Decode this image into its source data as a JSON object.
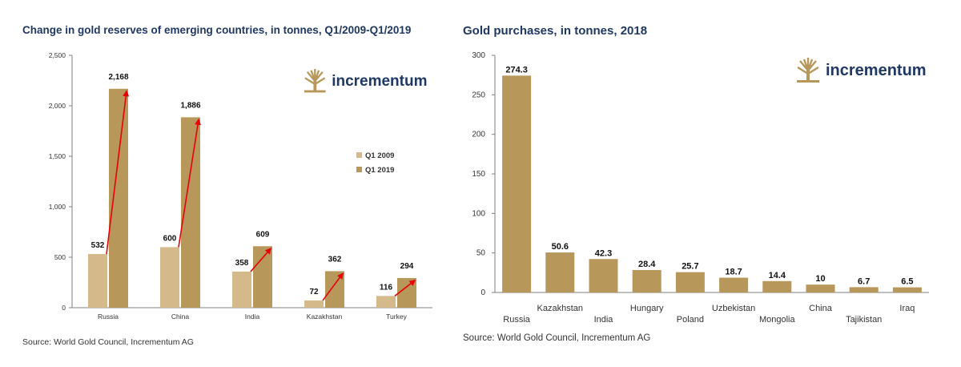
{
  "colors": {
    "q1_2009": "#d4b98a",
    "q1_2019": "#b8975a",
    "bar": "#b8975a",
    "arrow": "#e8000b",
    "title": "#1f3864",
    "logo": "#1f3864",
    "logo_tree": "#b8975a"
  },
  "left": {
    "title": "Change in gold reserves of emerging countries, in tonnes, Q1/2009-Q1/2019",
    "source": "Source: World Gold Council, Incrementum AG",
    "logo_text": "incrementum",
    "logo_icon": "tree-icon",
    "chart_data": {
      "type": "bar",
      "title": "Change in gold reserves of emerging countries, in tonnes, Q1/2009-Q1/2019",
      "categories": [
        "Russia",
        "China",
        "India",
        "Kazakhstan",
        "Turkey"
      ],
      "series": [
        {
          "name": "Q1 2009",
          "values": [
            532,
            600,
            358,
            72,
            116
          ],
          "labels": [
            "532",
            "600",
            "358",
            "72",
            "116"
          ]
        },
        {
          "name": "Q1 2019",
          "values": [
            2168,
            1886,
            609,
            362,
            294
          ],
          "labels": [
            "2,168",
            "1,886",
            "609",
            "362",
            "294"
          ]
        }
      ],
      "ylim": [
        0,
        2500
      ],
      "yticks": [
        0,
        500,
        1000,
        1500,
        2000,
        2500
      ],
      "ytick_labels": [
        "0",
        "500",
        "1,000",
        "1,500",
        "2,000",
        "2,500"
      ],
      "xlabel": "",
      "ylabel": "",
      "legend": "right",
      "annotations": "red arrows from Q1 2009 bar to Q1 2019 bar"
    }
  },
  "right": {
    "title": "Gold purchases, in tonnes, 2018",
    "source": "Source: World Gold Council, Incrementum AG",
    "logo_text": "incrementum",
    "logo_icon": "tree-icon",
    "chart_data": {
      "type": "bar",
      "title": "Gold purchases, in tonnes, 2018",
      "categories": [
        "Russia",
        "Kazakhstan",
        "India",
        "Hungary",
        "Poland",
        "Uzbekistan",
        "Mongolia",
        "China",
        "Tajikistan",
        "Iraq"
      ],
      "values": [
        274.3,
        50.6,
        42.3,
        28.4,
        25.7,
        18.7,
        14.4,
        10,
        6.7,
        6.5
      ],
      "labels": [
        "274.3",
        "50.6",
        "42.3",
        "28.4",
        "25.7",
        "18.7",
        "14.4",
        "10",
        "6.7",
        "6.5"
      ],
      "ylim": [
        0,
        300
      ],
      "yticks": [
        0,
        50,
        100,
        150,
        200,
        250,
        300
      ],
      "ytick_labels": [
        "0",
        "50",
        "100",
        "150",
        "200",
        "250",
        "300"
      ],
      "xlabel": "",
      "ylabel": ""
    }
  }
}
